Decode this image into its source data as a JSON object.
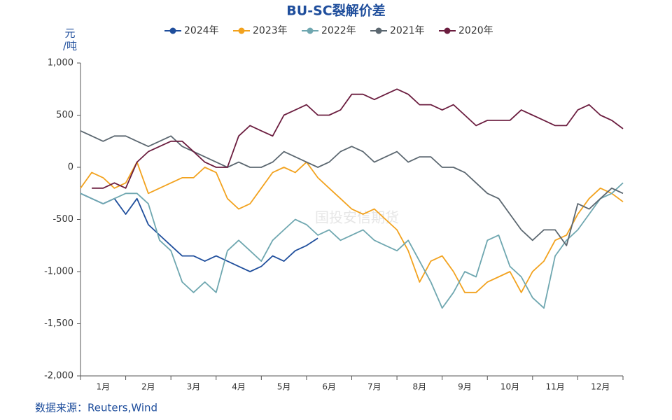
{
  "chart_data": {
    "type": "line",
    "title": "BU-SC裂解价差",
    "y_label": [
      "元",
      "/吨"
    ],
    "source": "数据来源：Reuters,Wind",
    "watermark": "国投安信期货",
    "x": [
      0,
      0.25,
      0.5,
      0.75,
      1,
      1.25,
      1.5,
      1.75,
      2,
      2.25,
      2.5,
      2.75,
      3,
      3.25,
      3.5,
      3.75,
      4,
      4.25,
      4.5,
      4.75,
      5,
      5.25,
      5.5,
      5.75,
      6,
      6.25,
      6.5,
      6.75,
      7,
      7.25,
      7.5,
      7.75,
      8,
      8.25,
      8.5,
      8.75,
      9,
      9.25,
      9.5,
      9.75,
      10,
      10.25,
      10.5,
      10.75,
      11,
      11.25,
      11.5,
      11.75,
      12
    ],
    "xlim": [
      0,
      12
    ],
    "xticks": [
      {
        "value": 0.5,
        "label": "1月"
      },
      {
        "value": 1.5,
        "label": "2月"
      },
      {
        "value": 2.5,
        "label": "3月"
      },
      {
        "value": 3.5,
        "label": "4月"
      },
      {
        "value": 4.5,
        "label": "5月"
      },
      {
        "value": 5.5,
        "label": "6月"
      },
      {
        "value": 6.5,
        "label": "7月"
      },
      {
        "value": 7.5,
        "label": "8月"
      },
      {
        "value": 8.5,
        "label": "9月"
      },
      {
        "value": 9.5,
        "label": "10月"
      },
      {
        "value": 10.5,
        "label": "11月"
      },
      {
        "value": 11.5,
        "label": "12月"
      }
    ],
    "ylim": [
      -2000,
      1000
    ],
    "yticks": [
      {
        "value": 1000,
        "label": "1,000"
      },
      500,
      0,
      -500,
      {
        "value": -1000,
        "label": "-1,000"
      },
      {
        "value": -1500,
        "label": "-1,500"
      },
      {
        "value": -2000,
        "label": "-2,000"
      }
    ],
    "series": [
      {
        "name": "2024年",
        "color": "#1f4e9c",
        "values": [
          -250,
          -300,
          -350,
          -300,
          -450,
          -300,
          -550,
          -650,
          -750,
          -850,
          -850,
          -900,
          -850,
          -900,
          -950,
          -1000,
          -950,
          -850,
          -900,
          -800,
          -750,
          -680,
          null,
          null,
          null,
          null,
          null,
          null,
          null,
          null,
          null,
          null,
          null,
          null,
          null,
          null,
          null,
          null,
          null,
          null,
          null,
          null,
          null,
          null,
          null,
          null,
          null,
          null,
          null
        ]
      },
      {
        "name": "2023年",
        "color": "#f2a21e",
        "values": [
          -200,
          -50,
          -100,
          -200,
          -150,
          50,
          -250,
          -200,
          -150,
          -100,
          -100,
          0,
          -50,
          -300,
          -400,
          -350,
          -200,
          -50,
          0,
          -50,
          50,
          -100,
          -200,
          -300,
          -400,
          -450,
          -400,
          -500,
          -600,
          -800,
          -1100,
          -900,
          -850,
          -1000,
          -1200,
          -1200,
          -1100,
          -1050,
          -1000,
          -1200,
          -1000,
          -900,
          -700,
          -650,
          -450,
          -300,
          -200,
          -250,
          -330
        ]
      },
      {
        "name": "2022年",
        "color": "#6fa7b0",
        "values": [
          -250,
          -300,
          -350,
          -300,
          -250,
          -250,
          -350,
          -700,
          -800,
          -1100,
          -1200,
          -1100,
          -1200,
          -800,
          -700,
          -800,
          -900,
          -700,
          -600,
          -500,
          -550,
          -650,
          -600,
          -700,
          -650,
          -600,
          -700,
          -750,
          -800,
          -700,
          -900,
          -1100,
          -1350,
          -1200,
          -1000,
          -1050,
          -700,
          -650,
          -950,
          -1050,
          -1250,
          -1350,
          -850,
          -700,
          -600,
          -450,
          -300,
          -250,
          -150
        ]
      },
      {
        "name": "2021年",
        "color": "#5b6770",
        "values": [
          350,
          300,
          250,
          300,
          300,
          250,
          200,
          250,
          300,
          200,
          150,
          100,
          50,
          0,
          50,
          0,
          0,
          50,
          150,
          100,
          50,
          0,
          50,
          150,
          200,
          150,
          50,
          100,
          150,
          50,
          100,
          100,
          0,
          0,
          -50,
          -150,
          -250,
          -300,
          -450,
          -600,
          -700,
          -600,
          -600,
          -750,
          -350,
          -400,
          -300,
          -200,
          -250
        ]
      },
      {
        "name": "2020年",
        "color": "#6b1d3f",
        "values": [
          null,
          -200,
          -200,
          -150,
          -200,
          50,
          150,
          200,
          250,
          250,
          150,
          50,
          0,
          0,
          300,
          400,
          350,
          300,
          500,
          550,
          600,
          500,
          500,
          550,
          700,
          700,
          650,
          700,
          750,
          700,
          600,
          600,
          550,
          600,
          500,
          400,
          450,
          450,
          450,
          550,
          500,
          450,
          400,
          400,
          550,
          600,
          500,
          450,
          370
        ]
      }
    ]
  }
}
